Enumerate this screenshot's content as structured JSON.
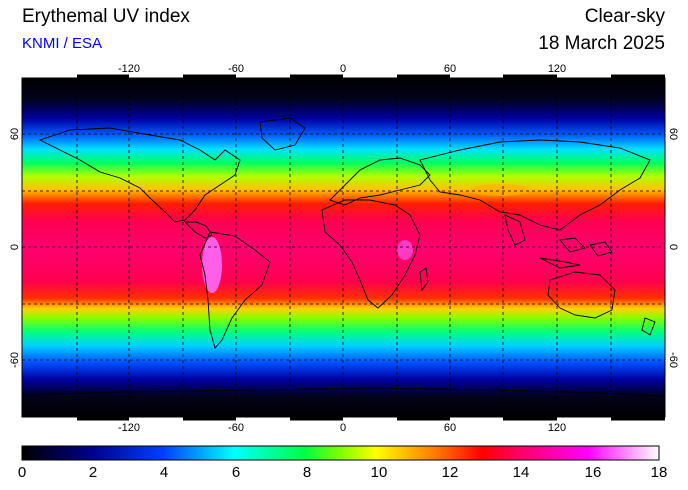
{
  "header": {
    "title": "Erythemal UV index",
    "source": "KNMI / ESA",
    "mode": "Clear-sky",
    "date": "18 March 2025"
  },
  "map": {
    "lon_ticks": [
      "-120",
      "-60",
      "0",
      "60",
      "120"
    ],
    "lat_ticks": [
      "60",
      "0",
      "-60"
    ]
  },
  "colorbar": {
    "labels": [
      "0",
      "2",
      "4",
      "6",
      "8",
      "10",
      "12",
      "14",
      "16",
      "18"
    ],
    "min": 0,
    "max": 18
  },
  "colors": {
    "ocean_dark": "#000008",
    "tropics": "#ff0060",
    "text_blue": "#0000ff"
  }
}
